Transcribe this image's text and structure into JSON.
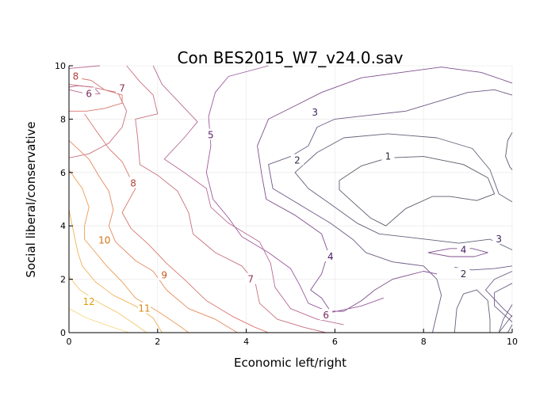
{
  "chart_data": {
    "type": "contour",
    "title": "Con BES2015_W7_v24.0.sav",
    "xlabel": "Economic left/right",
    "ylabel": "Social liberal/conservative",
    "xlim": [
      0,
      10
    ],
    "ylim": [
      0,
      10
    ],
    "xticks": [
      "0",
      "2",
      "4",
      "6",
      "8",
      "10"
    ],
    "yticks": [
      "0",
      "2",
      "4",
      "6",
      "8",
      "10"
    ],
    "grid": true,
    "legend": "none",
    "level_colors": {
      "1": "#5b5b6b",
      "2": "#62627a",
      "3": "#6e5a86",
      "4": "#80508e",
      "5": "#9b5a9e",
      "6": "#b86a93",
      "7": "#c9707f",
      "8": "#d9776d",
      "9": "#e48a5e",
      "10": "#ec9d55",
      "11": "#f0b258",
      "12": "#f3c76a",
      "13": "#f5da87"
    },
    "label_colors": {
      "1": "#2a2a3a",
      "2": "#2e2e48",
      "3": "#3d2260",
      "4": "#4a1a66",
      "5": "#5e1f6a",
      "6": "#7a2a63",
      "7": "#8e3350",
      "8": "#b2433f",
      "9": "#c85a25",
      "10": "#d0731a",
      "11": "#d98a12",
      "12": "#e09a10"
    },
    "contours": [
      {
        "level": 1,
        "points": [
          [
            6.1,
            5.7
          ],
          [
            6.6,
            6.25
          ],
          [
            7.2,
            6.55
          ],
          [
            8.0,
            6.6
          ],
          [
            8.9,
            6.3
          ],
          [
            9.45,
            5.8
          ],
          [
            9.6,
            5.2
          ],
          [
            9.2,
            4.95
          ],
          [
            8.6,
            5.1
          ],
          [
            8.2,
            5.1
          ],
          [
            7.6,
            4.65
          ],
          [
            7.15,
            4.0
          ],
          [
            6.8,
            4.3
          ],
          [
            6.4,
            4.9
          ],
          [
            6.1,
            5.35
          ],
          [
            6.1,
            5.7
          ]
        ]
      },
      {
        "level": 1,
        "points": [
          [
            10,
            7.5
          ],
          [
            9.9,
            7.2
          ],
          [
            9.85,
            6.6
          ],
          [
            9.95,
            6.2
          ],
          [
            10,
            6.1
          ]
        ]
      },
      {
        "level": 2,
        "points": [
          [
            10,
            4.9
          ],
          [
            9.7,
            5.2
          ],
          [
            9.5,
            6.1
          ],
          [
            9.1,
            6.9
          ],
          [
            8.3,
            7.3
          ],
          [
            7.2,
            7.45
          ],
          [
            6.2,
            7.3
          ],
          [
            5.6,
            6.75
          ],
          [
            5.1,
            6.0
          ],
          [
            5.4,
            5.4
          ],
          [
            6.0,
            4.7
          ],
          [
            6.5,
            4.1
          ],
          [
            7.0,
            3.7
          ],
          [
            7.8,
            3.55
          ],
          [
            8.8,
            3.35
          ],
          [
            9.5,
            3.5
          ],
          [
            10,
            3.1
          ]
        ]
      },
      {
        "level": 2,
        "points": [
          [
            8.7,
            0
          ],
          [
            8.75,
            0.9
          ],
          [
            8.9,
            1.45
          ],
          [
            9.2,
            1.6
          ],
          [
            9.45,
            1.2
          ],
          [
            9.5,
            0.5
          ],
          [
            9.5,
            0
          ]
        ]
      },
      {
        "level": 2,
        "points": [
          [
            9.7,
            0
          ],
          [
            10,
            0.65
          ]
        ]
      },
      {
        "level": 2,
        "points": [
          [
            10,
            0.3
          ],
          [
            9.9,
            0
          ]
        ]
      },
      {
        "level": 3,
        "points": [
          [
            10,
            8.9
          ],
          [
            9.6,
            9.1
          ],
          [
            9.0,
            9.0
          ],
          [
            8.4,
            8.7
          ],
          [
            7.6,
            8.3
          ],
          [
            6.8,
            8.15
          ],
          [
            6.0,
            8.0
          ],
          [
            5.6,
            7.7
          ],
          [
            5.4,
            7.0
          ],
          [
            5.0,
            6.6
          ],
          [
            4.5,
            6.3
          ],
          [
            4.6,
            5.4
          ],
          [
            5.3,
            4.7
          ],
          [
            5.9,
            4.1
          ],
          [
            6.4,
            3.5
          ],
          [
            6.7,
            3.0
          ],
          [
            7.3,
            2.65
          ],
          [
            8.0,
            2.5
          ],
          [
            8.3,
            2.0
          ],
          [
            8.4,
            1.4
          ],
          [
            8.3,
            0.7
          ],
          [
            8.2,
            0
          ]
        ]
      },
      {
        "level": 3,
        "points": [
          [
            10,
            2.3
          ],
          [
            9.6,
            2.0
          ],
          [
            9.4,
            1.6
          ],
          [
            9.8,
            0.9
          ],
          [
            10,
            0.6
          ]
        ]
      },
      {
        "level": 3,
        "points": [
          [
            10,
            1.85
          ],
          [
            9.6,
            1.5
          ],
          [
            9.6,
            1.0
          ],
          [
            10,
            0.4
          ]
        ]
      },
      {
        "level": 3,
        "points": [
          [
            10,
            1.05
          ],
          [
            9.8,
            0.5
          ],
          [
            9.7,
            0
          ]
        ]
      },
      {
        "level": 3,
        "points": [
          [
            10,
            2.5
          ],
          [
            9.6,
            2.4
          ],
          [
            9.1,
            2.35
          ],
          [
            8.7,
            2.45
          ]
        ]
      },
      {
        "level": 4,
        "points": [
          [
            10,
            9.35
          ],
          [
            9.3,
            9.75
          ],
          [
            8.4,
            9.95
          ],
          [
            7.5,
            9.75
          ],
          [
            6.6,
            9.55
          ],
          [
            5.7,
            9.0
          ],
          [
            5.1,
            8.5
          ],
          [
            4.5,
            8.0
          ],
          [
            4.25,
            7.0
          ],
          [
            4.35,
            5.9
          ],
          [
            4.45,
            5.0
          ],
          [
            5.1,
            4.4
          ],
          [
            5.7,
            3.7
          ],
          [
            5.85,
            3.0
          ],
          [
            5.7,
            2.2
          ],
          [
            5.45,
            1.6
          ],
          [
            5.7,
            1.3
          ],
          [
            5.9,
            0.8
          ],
          [
            6.2,
            0.8
          ],
          [
            6.6,
            1.2
          ],
          [
            6.9,
            1.6
          ],
          [
            7.3,
            2.0
          ],
          [
            8.0,
            2.3
          ],
          [
            8.3,
            2.2
          ]
        ]
      },
      {
        "level": 4,
        "points": [
          [
            8.1,
            3.0
          ],
          [
            8.6,
            3.15
          ],
          [
            9.1,
            3.15
          ],
          [
            9.45,
            3.0
          ],
          [
            9.15,
            2.85
          ],
          [
            8.6,
            2.85
          ],
          [
            8.1,
            3.0
          ]
        ]
      },
      {
        "level": 5,
        "points": [
          [
            4.5,
            10
          ],
          [
            3.6,
            9.6
          ],
          [
            3.3,
            9.0
          ],
          [
            3.15,
            8.1
          ],
          [
            3.2,
            7.0
          ],
          [
            3.1,
            6.0
          ],
          [
            3.25,
            5.0
          ],
          [
            3.6,
            4.3
          ],
          [
            3.9,
            3.6
          ],
          [
            4.5,
            3.0
          ],
          [
            5.0,
            2.4
          ],
          [
            5.2,
            1.8
          ],
          [
            5.4,
            1.1
          ],
          [
            5.9,
            0.75
          ],
          [
            6.6,
            1.0
          ],
          [
            7.1,
            1.3
          ]
        ]
      },
      {
        "level": 6,
        "points": [
          [
            1.9,
            10
          ],
          [
            2.1,
            9.3
          ],
          [
            2.5,
            8.6
          ],
          [
            2.9,
            7.9
          ],
          [
            2.6,
            7.3
          ],
          [
            2.15,
            6.5
          ],
          [
            2.6,
            6.0
          ],
          [
            3.1,
            5.4
          ],
          [
            3.2,
            4.7
          ],
          [
            3.6,
            4.1
          ],
          [
            4.3,
            3.4
          ],
          [
            4.55,
            2.6
          ],
          [
            4.65,
            1.7
          ],
          [
            5.0,
            0.9
          ],
          [
            5.6,
            0.5
          ],
          [
            6.2,
            0.3
          ]
        ]
      },
      {
        "level": 6,
        "points": [
          [
            0.0,
            9.9
          ],
          [
            0.7,
            10
          ]
        ]
      },
      {
        "level": 6,
        "points": [
          [
            0.0,
            9.1
          ],
          [
            0.4,
            8.95
          ],
          [
            0.7,
            8.95
          ],
          [
            0.55,
            9.2
          ],
          [
            0.2,
            9.25
          ],
          [
            0.0,
            9.2
          ]
        ]
      },
      {
        "level": 7,
        "points": [
          [
            1.3,
            10
          ],
          [
            1.6,
            9.4
          ],
          [
            1.9,
            8.9
          ],
          [
            2.0,
            8.2
          ],
          [
            1.5,
            8.0
          ],
          [
            1.55,
            7.3
          ],
          [
            1.6,
            6.3
          ],
          [
            2.0,
            5.9
          ],
          [
            2.45,
            5.3
          ],
          [
            2.7,
            4.5
          ],
          [
            2.8,
            3.7
          ],
          [
            3.3,
            3.0
          ],
          [
            3.9,
            2.5
          ],
          [
            4.2,
            1.9
          ],
          [
            4.3,
            1.1
          ],
          [
            4.7,
            0.5
          ],
          [
            5.3,
            0.2
          ],
          [
            5.8,
            0
          ]
        ]
      },
      {
        "level": 7,
        "points": [
          [
            0.0,
            9.3
          ],
          [
            0.5,
            9.2
          ],
          [
            1.1,
            9.0
          ],
          [
            1.3,
            8.3
          ],
          [
            1.2,
            7.7
          ],
          [
            0.9,
            7.1
          ],
          [
            0.45,
            6.7
          ],
          [
            0.0,
            6.55
          ]
        ]
      },
      {
        "level": 8,
        "points": [
          [
            0.0,
            9.6
          ],
          [
            0.5,
            9.45
          ],
          [
            0.8,
            9.1
          ],
          [
            1.2,
            8.9
          ],
          [
            1.2,
            8.6
          ],
          [
            0.8,
            8.4
          ],
          [
            0.4,
            8.3
          ],
          [
            0.0,
            8.3
          ]
        ]
      },
      {
        "level": 8,
        "points": [
          [
            0.35,
            8.2
          ],
          [
            0.6,
            7.6
          ],
          [
            0.9,
            6.9
          ],
          [
            1.2,
            6.4
          ],
          [
            1.5,
            5.4
          ],
          [
            1.2,
            4.5
          ],
          [
            1.4,
            3.9
          ],
          [
            1.8,
            3.3
          ],
          [
            2.2,
            2.6
          ],
          [
            2.6,
            2.0
          ],
          [
            3.1,
            1.2
          ],
          [
            3.7,
            0.6
          ],
          [
            4.2,
            0.2
          ],
          [
            4.5,
            0
          ]
        ]
      },
      {
        "level": 9,
        "points": [
          [
            0.0,
            7.2
          ],
          [
            0.45,
            6.5
          ],
          [
            0.7,
            5.8
          ],
          [
            0.9,
            5.3
          ],
          [
            1.0,
            4.6
          ],
          [
            0.9,
            4.0
          ],
          [
            1.05,
            3.4
          ],
          [
            1.5,
            2.7
          ],
          [
            1.9,
            2.3
          ],
          [
            2.2,
            1.6
          ],
          [
            2.7,
            0.9
          ],
          [
            3.3,
            0.5
          ],
          [
            3.8,
            0
          ]
        ]
      },
      {
        "level": 10,
        "points": [
          [
            0.0,
            6.1
          ],
          [
            0.3,
            5.4
          ],
          [
            0.45,
            4.7
          ],
          [
            0.35,
            4.0
          ],
          [
            0.35,
            3.5
          ],
          [
            0.6,
            3.0
          ],
          [
            0.85,
            2.5
          ],
          [
            1.2,
            1.9
          ],
          [
            1.5,
            1.3
          ],
          [
            2.0,
            0.8
          ],
          [
            2.45,
            0.3
          ],
          [
            2.7,
            0
          ]
        ]
      },
      {
        "level": 11,
        "points": [
          [
            0.0,
            4.6
          ],
          [
            0.1,
            3.8
          ],
          [
            0.2,
            3.0
          ],
          [
            0.3,
            2.5
          ],
          [
            0.6,
            1.9
          ],
          [
            1.0,
            1.4
          ],
          [
            1.5,
            1.0
          ],
          [
            1.9,
            0.55
          ],
          [
            2.1,
            0
          ]
        ]
      },
      {
        "level": 12,
        "points": [
          [
            0.0,
            2.1
          ],
          [
            0.25,
            1.6
          ],
          [
            0.7,
            1.1
          ],
          [
            1.1,
            0.75
          ],
          [
            1.5,
            0.3
          ],
          [
            1.75,
            0
          ]
        ]
      },
      {
        "level": 13,
        "points": [
          [
            0.0,
            0.9
          ],
          [
            0.4,
            0.55
          ],
          [
            0.9,
            0.25
          ],
          [
            1.35,
            0
          ]
        ]
      }
    ],
    "labels": [
      {
        "text": "1",
        "x": 7.2,
        "y": 6.6
      },
      {
        "text": "2",
        "x": 5.15,
        "y": 6.45
      },
      {
        "text": "2",
        "x": 8.9,
        "y": 2.2
      },
      {
        "text": "3",
        "x": 5.55,
        "y": 8.25
      },
      {
        "text": "3",
        "x": 9.7,
        "y": 3.5
      },
      {
        "text": "4",
        "x": 5.9,
        "y": 2.85
      },
      {
        "text": "4",
        "x": 8.9,
        "y": 3.1
      },
      {
        "text": "5",
        "x": 3.2,
        "y": 7.4
      },
      {
        "text": "6",
        "x": 0.45,
        "y": 8.95
      },
      {
        "text": "6",
        "x": 5.8,
        "y": 0.65
      },
      {
        "text": "7",
        "x": 1.2,
        "y": 9.15
      },
      {
        "text": "7",
        "x": 4.1,
        "y": 2.0
      },
      {
        "text": "8",
        "x": 0.15,
        "y": 9.6
      },
      {
        "text": "8",
        "x": 1.45,
        "y": 5.6
      },
      {
        "text": "9",
        "x": 2.15,
        "y": 2.15
      },
      {
        "text": "10",
        "x": 0.8,
        "y": 3.45
      },
      {
        "text": "11",
        "x": 1.7,
        "y": 0.9
      },
      {
        "text": "12",
        "x": 0.45,
        "y": 1.15
      }
    ]
  }
}
